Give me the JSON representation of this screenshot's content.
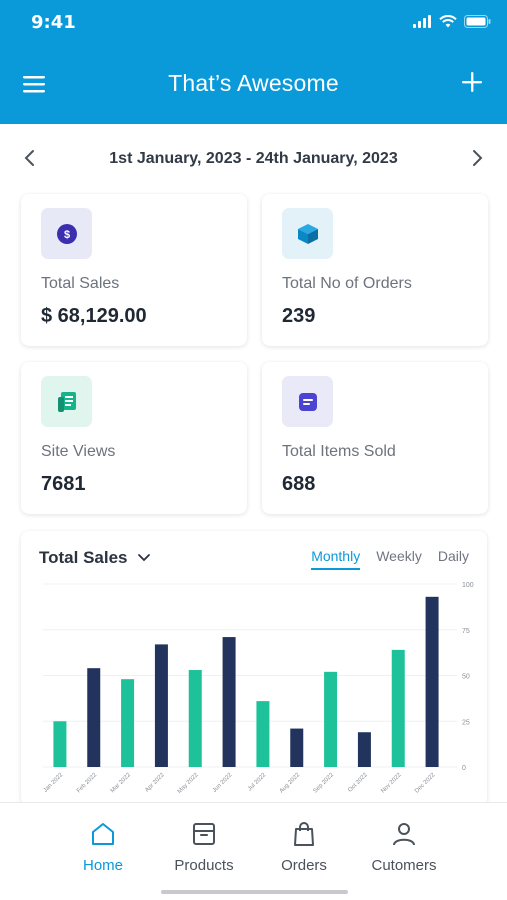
{
  "status_bar": {
    "time": "9:41"
  },
  "header": {
    "title": "That’s Awesome"
  },
  "date_range": {
    "label": "1st January, 2023 - 24th January, 2023"
  },
  "stats": [
    {
      "label": "Total Sales",
      "value": "$ 68,129.00",
      "icon": "dollar-coin-icon",
      "icon_bg": "#e8e9f7",
      "icon_color": "#3b2fb0"
    },
    {
      "label": "Total No of Orders",
      "value": "239",
      "icon": "box-icon",
      "icon_bg": "#e3f2f9",
      "icon_color": "#0a88c6"
    },
    {
      "label": "Site Views",
      "value": "7681",
      "icon": "receipt-icon",
      "icon_bg": "#dff5ee",
      "icon_color": "#17b38a"
    },
    {
      "label": "Total Items Sold",
      "value": "688",
      "icon": "message-icon",
      "icon_bg": "#e9e9f8",
      "icon_color": "#4b43d1"
    }
  ],
  "chart_section": {
    "title": "Total Sales",
    "tabs": [
      "Monthly",
      "Weekly",
      "Daily"
    ],
    "active_tab": "Monthly"
  },
  "chart_data": {
    "type": "bar",
    "title": "Total Sales",
    "categories": [
      "Jan 2022",
      "Feb 2022",
      "Mar 2022",
      "Apr 2022",
      "May 2022",
      "Jun 2022",
      "Jul 2022",
      "Aug 2022",
      "Sep 2022",
      "Oct 2022",
      "Nov 2022",
      "Dec 2022"
    ],
    "values": [
      25,
      54,
      48,
      67,
      53,
      71,
      36,
      21,
      52,
      19,
      64,
      93
    ],
    "colors": [
      "#1ec29a",
      "#22345e"
    ],
    "yticks": [
      0,
      25,
      50,
      75,
      100
    ],
    "ylim": [
      0,
      100
    ],
    "grid": true,
    "axis_position": "right"
  },
  "bottom_nav": [
    {
      "label": "Home",
      "icon": "home-icon",
      "active": true
    },
    {
      "label": "Products",
      "icon": "package-icon",
      "active": false
    },
    {
      "label": "Orders",
      "icon": "shopping-bag-icon",
      "active": false
    },
    {
      "label": "Cutomers",
      "icon": "user-icon",
      "active": false
    }
  ],
  "colors": {
    "primary": "#0a9ad9",
    "bar_green": "#1ec29a",
    "bar_navy": "#22345e"
  }
}
